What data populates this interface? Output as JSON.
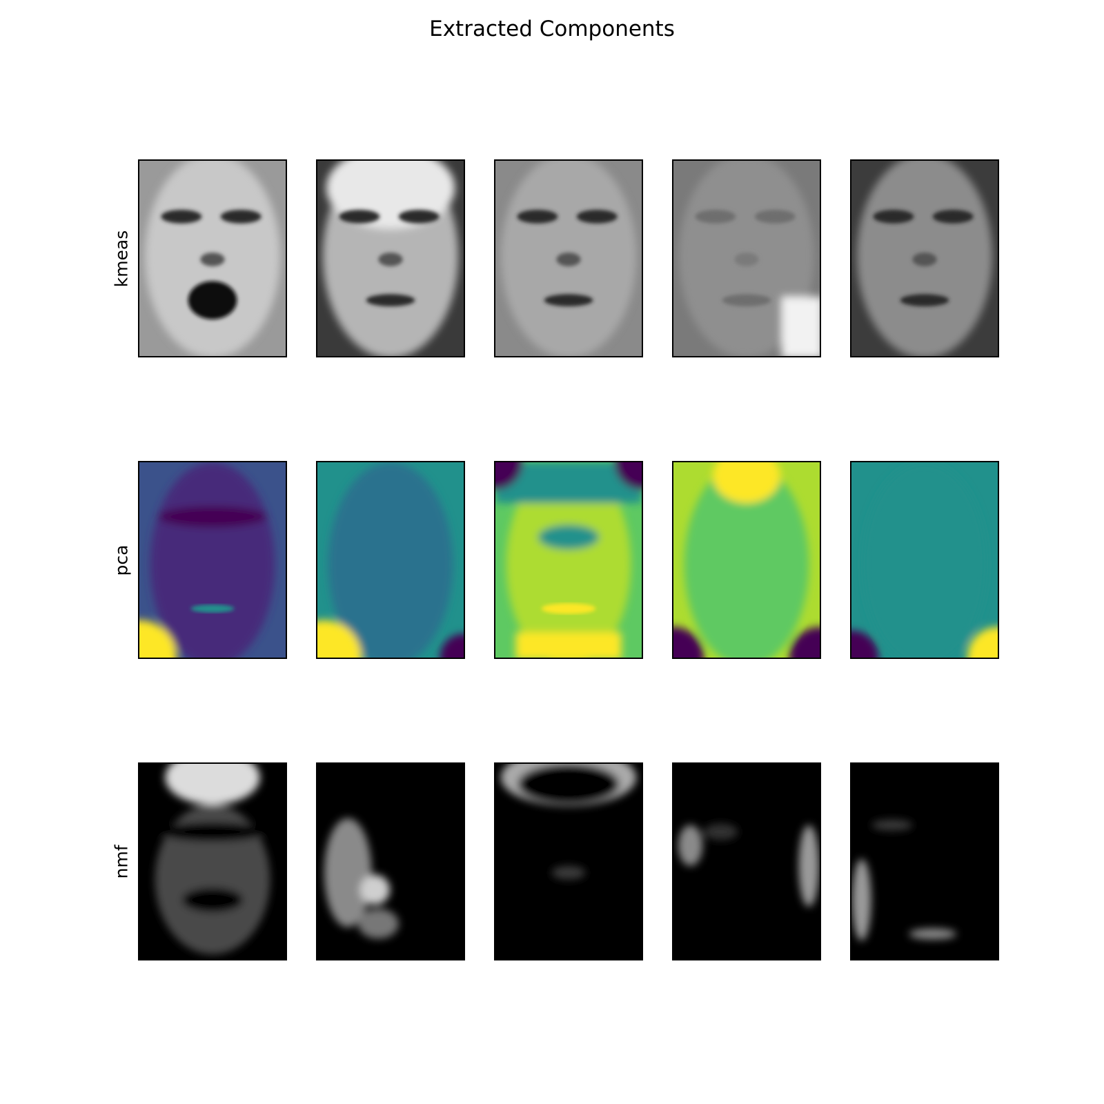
{
  "title": "Extracted Components",
  "chart_data": {
    "type": "image_grid",
    "title": "Extracted Components",
    "rows": [
      {
        "label": "kmeas",
        "colormap": "gray",
        "count": 5
      },
      {
        "label": "pca",
        "colormap": "viridis",
        "count": 5
      },
      {
        "label": "nmf",
        "colormap": "gray",
        "count": 5
      }
    ],
    "columns": 5,
    "axis_ticks": false
  }
}
